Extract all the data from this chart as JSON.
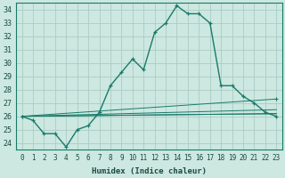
{
  "xlabel": "Humidex (Indice chaleur)",
  "background_color": "#cce8e0",
  "grid_color": "#aaccC4",
  "line_color": "#1a7a6a",
  "xlim": [
    -0.5,
    23.5
  ],
  "ylim": [
    23.5,
    34.5
  ],
  "yticks": [
    24,
    25,
    26,
    27,
    28,
    29,
    30,
    31,
    32,
    33,
    34
  ],
  "xticks": [
    0,
    1,
    2,
    3,
    4,
    5,
    6,
    7,
    8,
    9,
    10,
    11,
    12,
    13,
    14,
    15,
    16,
    17,
    18,
    19,
    20,
    21,
    22,
    23
  ],
  "main_series": {
    "x": [
      0,
      1,
      2,
      3,
      4,
      5,
      6,
      7,
      8,
      9,
      10,
      11,
      12,
      13,
      14,
      15,
      16,
      17,
      18,
      19,
      20,
      21,
      22,
      23
    ],
    "y": [
      26.0,
      25.7,
      24.7,
      24.7,
      23.7,
      25.0,
      25.3,
      26.3,
      28.3,
      29.3,
      30.3,
      29.5,
      32.3,
      33.0,
      34.3,
      33.7,
      33.7,
      33.0,
      28.3,
      28.3,
      27.5,
      27.0,
      26.3,
      26.0
    ]
  },
  "diag_lines": [
    {
      "x": [
        0,
        23
      ],
      "y": [
        26.0,
        26.2
      ],
      "marker": false
    },
    {
      "x": [
        0,
        23
      ],
      "y": [
        26.0,
        26.5
      ],
      "marker": false
    },
    {
      "x": [
        0,
        23
      ],
      "y": [
        26.0,
        27.3
      ],
      "marker": true
    },
    {
      "x": [
        0,
        23
      ],
      "y": [
        26.0,
        26.2
      ],
      "marker": false
    }
  ]
}
